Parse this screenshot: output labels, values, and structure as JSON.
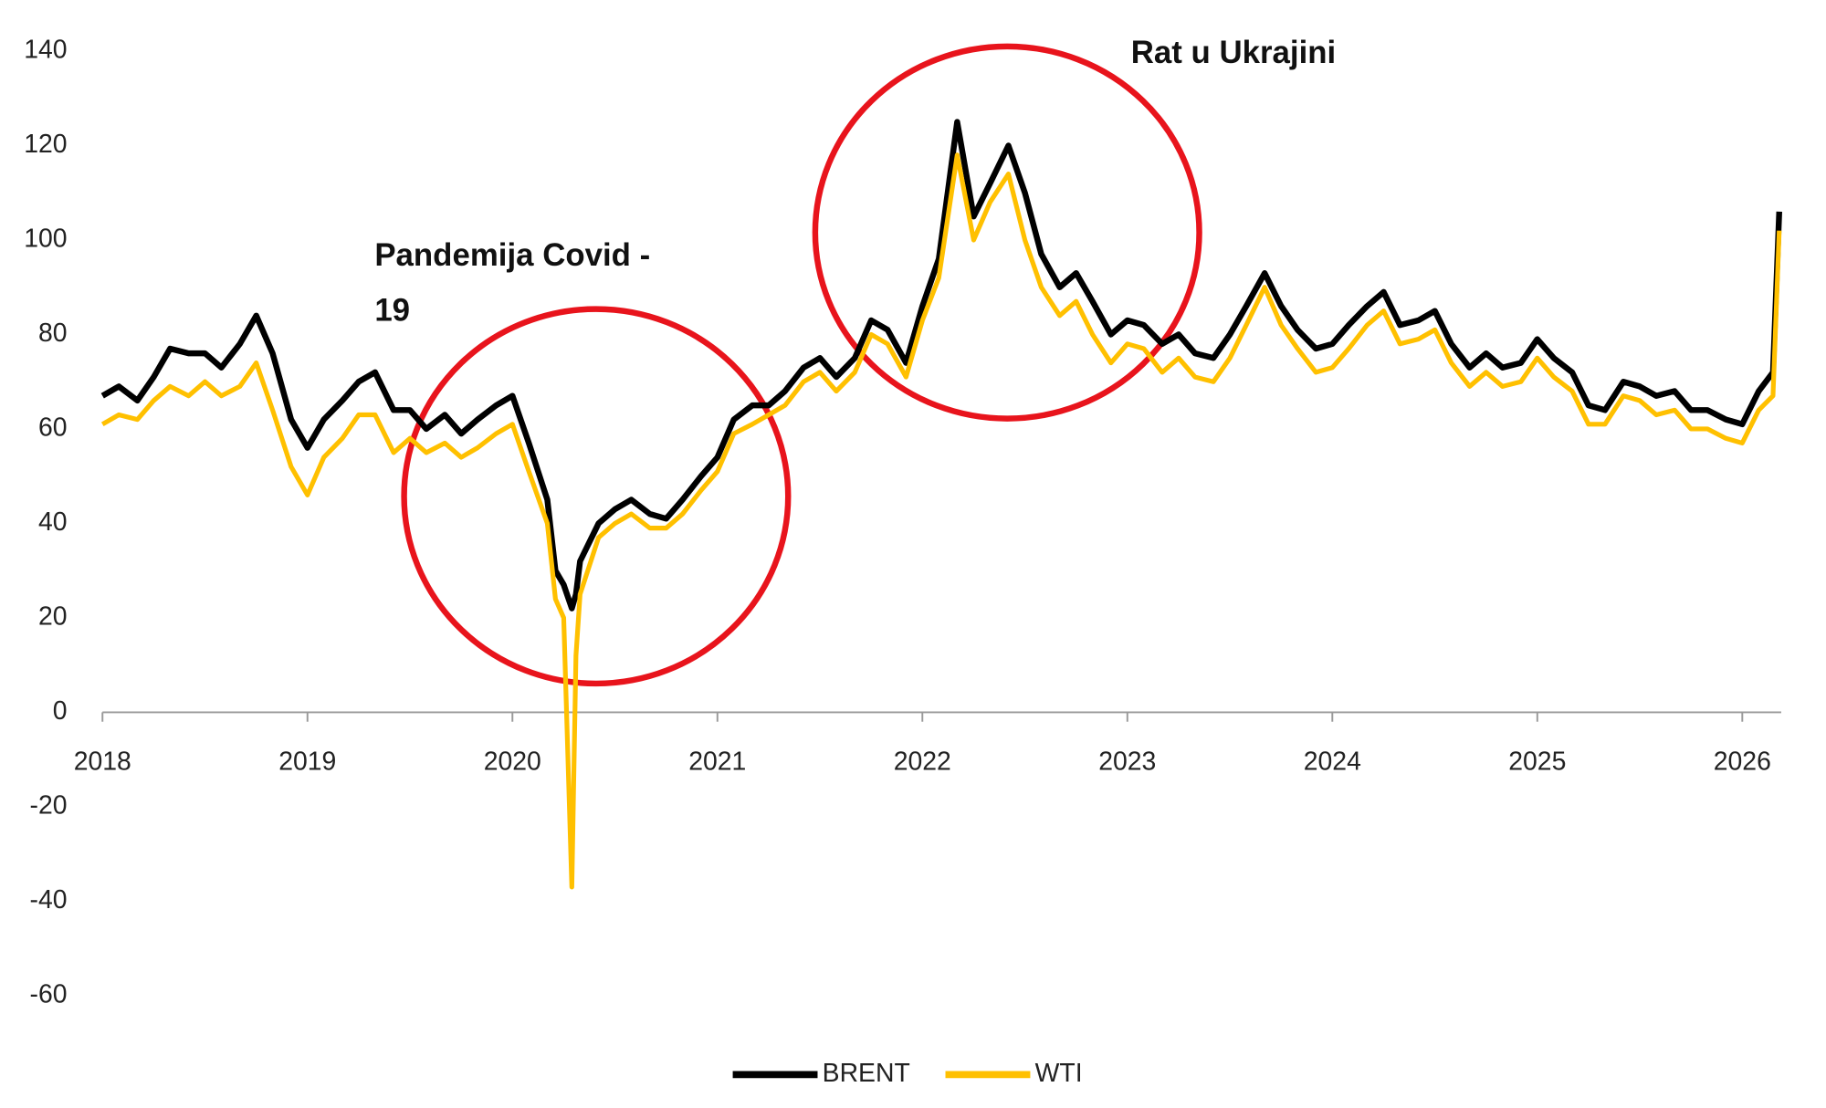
{
  "chart_data": {
    "type": "line",
    "annotations": [
      [
        "Pandemija Covid -",
        "19"
      ],
      [
        "Rat u Ukrajini"
      ]
    ],
    "x": [
      2018.0,
      2018.08,
      2018.17,
      2018.25,
      2018.33,
      2018.42,
      2018.5,
      2018.58,
      2018.67,
      2018.75,
      2018.83,
      2018.92,
      2019.0,
      2019.08,
      2019.17,
      2019.25,
      2019.33,
      2019.42,
      2019.5,
      2019.58,
      2019.67,
      2019.75,
      2019.83,
      2019.92,
      2020.0,
      2020.08,
      2020.17,
      2020.21,
      2020.25,
      2020.29,
      2020.31,
      2020.33,
      2020.42,
      2020.5,
      2020.58,
      2020.67,
      2020.75,
      2020.83,
      2020.92,
      2021.0,
      2021.08,
      2021.17,
      2021.25,
      2021.33,
      2021.42,
      2021.5,
      2021.58,
      2021.67,
      2021.75,
      2021.83,
      2021.92,
      2022.0,
      2022.08,
      2022.17,
      2022.25,
      2022.33,
      2022.42,
      2022.5,
      2022.58,
      2022.67,
      2022.75,
      2022.83,
      2022.92,
      2023.0,
      2023.08,
      2023.17,
      2023.25,
      2023.33,
      2023.42,
      2023.5,
      2023.58,
      2023.67,
      2023.75,
      2023.83,
      2023.92,
      2024.0,
      2024.08,
      2024.17,
      2024.25,
      2024.33,
      2024.42,
      2024.5,
      2024.58,
      2024.67,
      2024.75,
      2024.83,
      2024.92,
      2025.0,
      2025.08,
      2025.17,
      2025.25,
      2025.33,
      2025.42,
      2025.5,
      2025.58,
      2025.67,
      2025.75,
      2025.83,
      2025.92,
      2026.0,
      2026.08,
      2026.15,
      2026.18
    ],
    "series": [
      {
        "name": "BRENT",
        "color": "#000000",
        "values": [
          67,
          69,
          66,
          71,
          77,
          76,
          76,
          73,
          78,
          84,
          76,
          62,
          56,
          62,
          66,
          70,
          72,
          64,
          64,
          60,
          63,
          59,
          62,
          65,
          67,
          57,
          45,
          30,
          27,
          22,
          25,
          32,
          40,
          43,
          45,
          42,
          41,
          45,
          50,
          54,
          62,
          65,
          65,
          68,
          73,
          75,
          71,
          75,
          83,
          81,
          74,
          86,
          96,
          125,
          105,
          112,
          120,
          110,
          97,
          90,
          93,
          87,
          80,
          83,
          82,
          78,
          80,
          76,
          75,
          80,
          86,
          93,
          86,
          81,
          77,
          78,
          82,
          86,
          89,
          82,
          83,
          85,
          78,
          73,
          76,
          73,
          74,
          79,
          75,
          72,
          65,
          64,
          70,
          69,
          67,
          68,
          64,
          64,
          62,
          61,
          68,
          72,
          106
        ]
      },
      {
        "name": "WTI",
        "color": "#ffc000",
        "values": [
          61,
          63,
          62,
          66,
          69,
          67,
          70,
          67,
          69,
          74,
          64,
          52,
          46,
          54,
          58,
          63,
          63,
          55,
          58,
          55,
          57,
          54,
          56,
          59,
          61,
          51,
          40,
          24,
          20,
          -37,
          12,
          25,
          37,
          40,
          42,
          39,
          39,
          42,
          47,
          51,
          59,
          61,
          63,
          65,
          70,
          72,
          68,
          72,
          80,
          78,
          71,
          83,
          92,
          118,
          100,
          108,
          114,
          100,
          90,
          84,
          87,
          80,
          74,
          78,
          77,
          72,
          75,
          71,
          70,
          75,
          82,
          90,
          82,
          77,
          72,
          73,
          77,
          82,
          85,
          78,
          79,
          81,
          74,
          69,
          72,
          69,
          70,
          75,
          71,
          68,
          61,
          61,
          67,
          66,
          63,
          64,
          60,
          60,
          58,
          57,
          64,
          67,
          102
        ]
      }
    ],
    "xlim": [
      2018,
      2026.19
    ],
    "xticks": [
      2018,
      2019,
      2020,
      2021,
      2022,
      2023,
      2024,
      2025,
      2026
    ],
    "ylim": [
      -60,
      140
    ],
    "yticks": [
      -60,
      -40,
      -20,
      0,
      20,
      40,
      60,
      80,
      100,
      120,
      140
    ],
    "grid": false,
    "legend": "bottom"
  }
}
